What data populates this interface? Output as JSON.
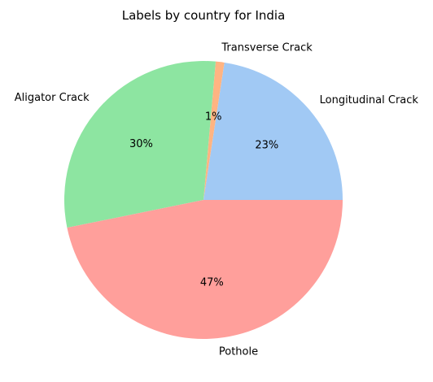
{
  "chart_data": {
    "type": "pie",
    "title": "Labels by country for India",
    "slices": [
      {
        "label": "Longitudinal Crack",
        "value": 22.6,
        "pct_label": "23%",
        "color": "#a1c9f4"
      },
      {
        "label": "Transverse Crack",
        "value": 1.0,
        "pct_label": "1%",
        "color": "#ffb482"
      },
      {
        "label": "Aligator Crack",
        "value": 29.6,
        "pct_label": "30%",
        "color": "#8de5a1"
      },
      {
        "label": "Pothole",
        "value": 46.8,
        "pct_label": "47%",
        "color": "#ff9f9b"
      }
    ],
    "start_angle_deg": 0,
    "direction": "counterclockwise"
  }
}
